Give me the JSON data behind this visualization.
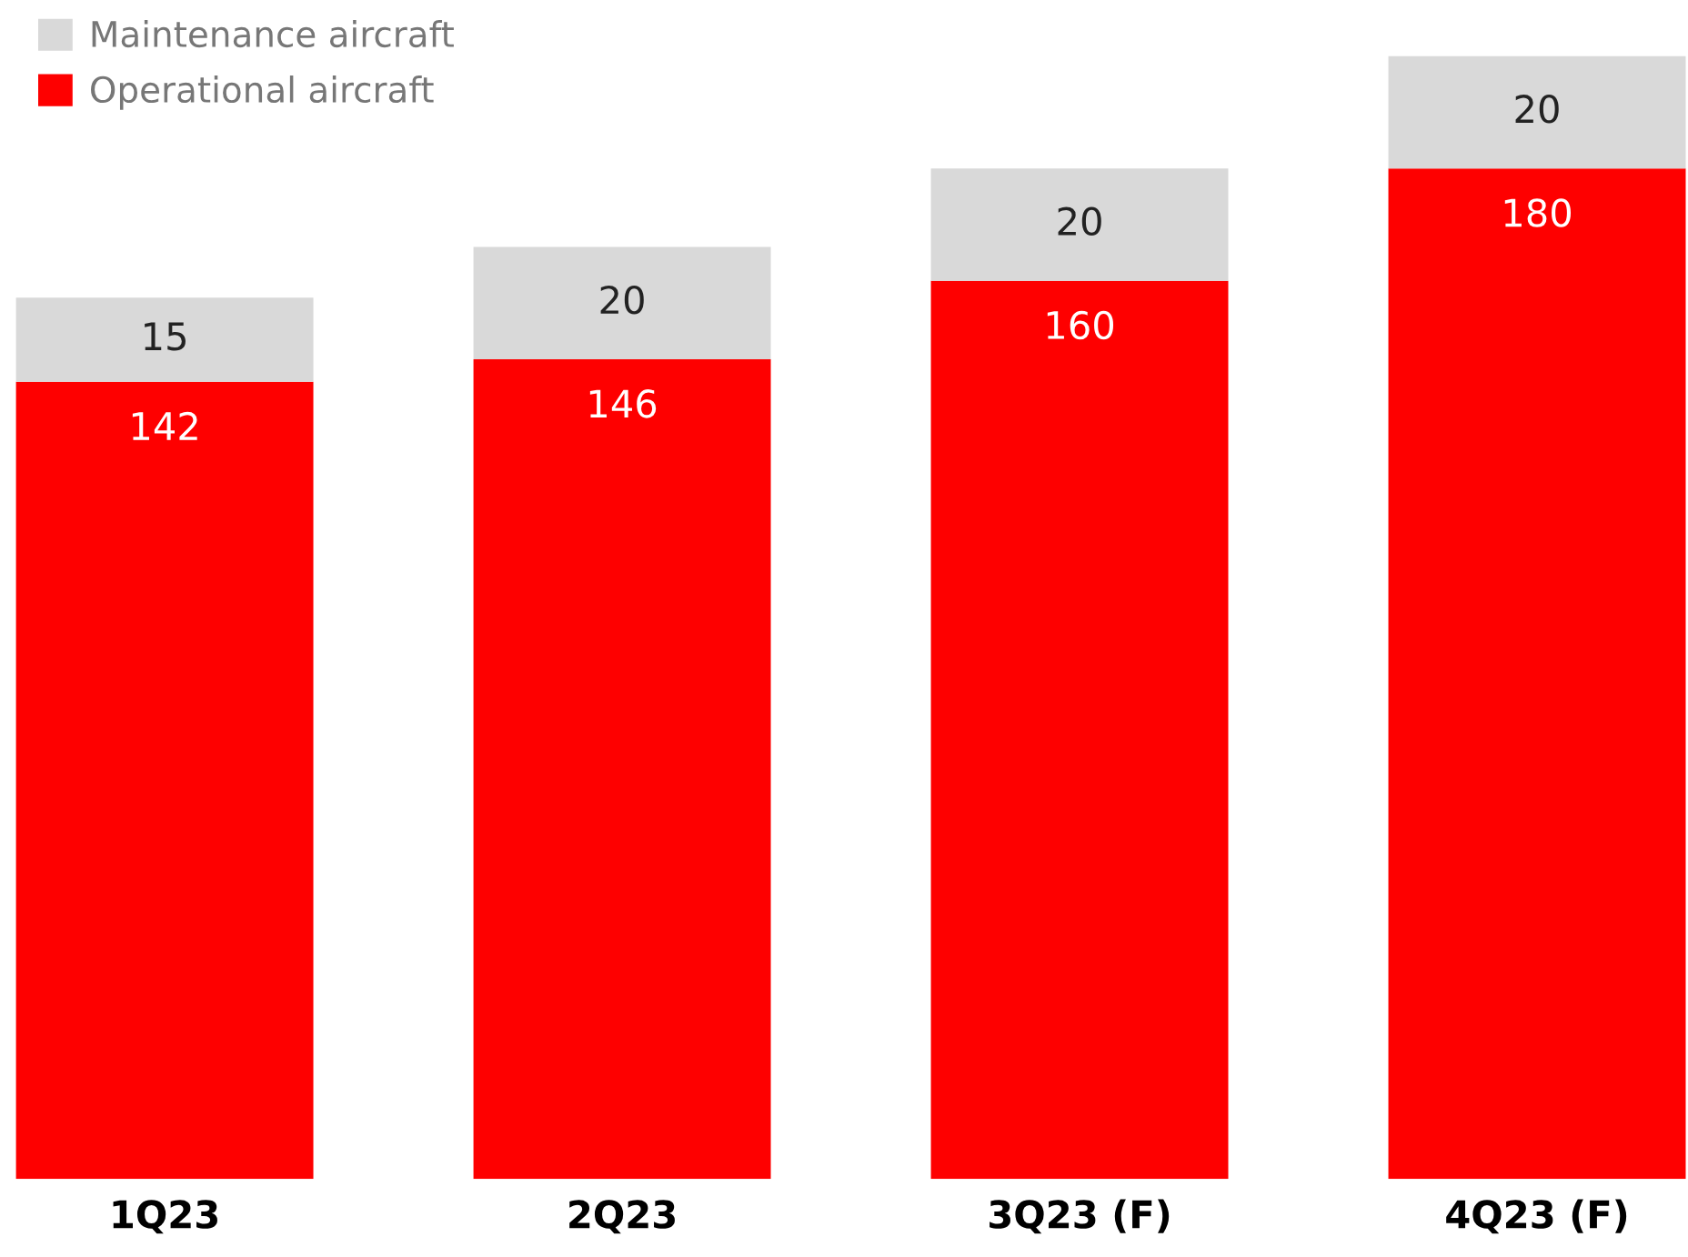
{
  "chart_data": {
    "type": "bar",
    "stacked": true,
    "categories": [
      "1Q23",
      "2Q23",
      "3Q23 (F)",
      "4Q23 (F)"
    ],
    "series": [
      {
        "name": "Operational aircraft",
        "color": "#fe0000",
        "values": [
          142,
          146,
          160,
          180
        ]
      },
      {
        "name": "Maintenance aircraft",
        "color": "#d9d9d9",
        "values": [
          15,
          20,
          20,
          20
        ]
      }
    ],
    "data_labels": true,
    "legend": "top left",
    "tick_labels": "x",
    "grid": false
  }
}
